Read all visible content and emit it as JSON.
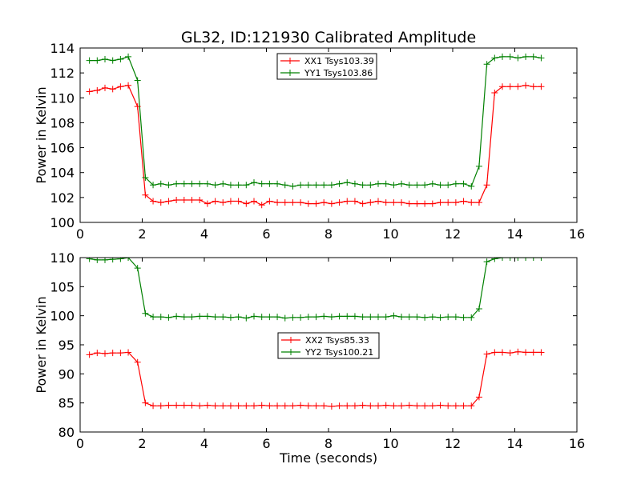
{
  "chart_data": [
    {
      "type": "line",
      "title": "GL32, ID:121930 Calibrated Amplitude",
      "xlabel": "",
      "ylabel": "Power in Kelvin",
      "xlim": [
        0,
        16
      ],
      "ylim": [
        100,
        114
      ],
      "xticks": [
        0,
        2,
        4,
        6,
        8,
        10,
        12,
        14,
        16
      ],
      "yticks": [
        100,
        102,
        104,
        106,
        108,
        110,
        112,
        114
      ],
      "legend_position": "top-center",
      "x": [
        0.3,
        0.55,
        0.8,
        1.05,
        1.3,
        1.55,
        1.85,
        2.1,
        2.35,
        2.6,
        2.85,
        3.1,
        3.35,
        3.6,
        3.85,
        4.1,
        4.35,
        4.6,
        4.85,
        5.1,
        5.35,
        5.6,
        5.85,
        6.1,
        6.35,
        6.6,
        6.85,
        7.1,
        7.35,
        7.6,
        7.85,
        8.1,
        8.35,
        8.6,
        8.85,
        9.1,
        9.35,
        9.6,
        9.85,
        10.1,
        10.35,
        10.6,
        10.85,
        11.1,
        11.35,
        11.6,
        11.85,
        12.1,
        12.35,
        12.6,
        12.85,
        13.1,
        13.35,
        13.6,
        13.85,
        14.1,
        14.35,
        14.6,
        14.85
      ],
      "series": [
        {
          "name": "XX1 Tsys103.39",
          "color": "#ff0000",
          "values": [
            110.5,
            110.6,
            110.8,
            110.7,
            110.9,
            111.0,
            109.3,
            102.2,
            101.7,
            101.6,
            101.7,
            101.8,
            101.8,
            101.8,
            101.8,
            101.5,
            101.7,
            101.6,
            101.7,
            101.7,
            101.5,
            101.7,
            101.4,
            101.7,
            101.6,
            101.6,
            101.6,
            101.6,
            101.5,
            101.5,
            101.6,
            101.5,
            101.6,
            101.7,
            101.7,
            101.5,
            101.6,
            101.7,
            101.6,
            101.6,
            101.6,
            101.5,
            101.5,
            101.5,
            101.5,
            101.6,
            101.6,
            101.6,
            101.7,
            101.6,
            101.6,
            103.0,
            110.4,
            110.9,
            110.9,
            110.9,
            111.0,
            110.9,
            110.9
          ]
        },
        {
          "name": "YY1 Tsys103.86",
          "color": "#008000",
          "values": [
            113.0,
            113.0,
            113.1,
            113.0,
            113.1,
            113.3,
            111.4,
            103.6,
            103.0,
            103.1,
            103.0,
            103.1,
            103.1,
            103.1,
            103.1,
            103.1,
            103.0,
            103.1,
            103.0,
            103.0,
            103.0,
            103.2,
            103.1,
            103.1,
            103.1,
            103.0,
            102.9,
            103.0,
            103.0,
            103.0,
            103.0,
            103.0,
            103.1,
            103.2,
            103.1,
            103.0,
            103.0,
            103.1,
            103.1,
            103.0,
            103.1,
            103.0,
            103.0,
            103.0,
            103.1,
            103.0,
            103.0,
            103.1,
            103.1,
            102.9,
            104.5,
            112.7,
            113.2,
            113.3,
            113.3,
            113.2,
            113.3,
            113.3,
            113.2
          ]
        }
      ]
    },
    {
      "type": "line",
      "title": "",
      "xlabel": "Time (seconds)",
      "ylabel": "Power in Kelvin",
      "xlim": [
        0,
        16
      ],
      "ylim": [
        80,
        110
      ],
      "xticks": [
        0,
        2,
        4,
        6,
        8,
        10,
        12,
        14,
        16
      ],
      "yticks": [
        80,
        85,
        90,
        95,
        100,
        105,
        110
      ],
      "legend_position": "center",
      "x": [
        0.3,
        0.55,
        0.8,
        1.05,
        1.3,
        1.55,
        1.85,
        2.1,
        2.35,
        2.6,
        2.85,
        3.1,
        3.35,
        3.6,
        3.85,
        4.1,
        4.35,
        4.6,
        4.85,
        5.1,
        5.35,
        5.6,
        5.85,
        6.1,
        6.35,
        6.6,
        6.85,
        7.1,
        7.35,
        7.6,
        7.85,
        8.1,
        8.35,
        8.6,
        8.85,
        9.1,
        9.35,
        9.6,
        9.85,
        10.1,
        10.35,
        10.6,
        10.85,
        11.1,
        11.35,
        11.6,
        11.85,
        12.1,
        12.35,
        12.6,
        12.85,
        13.1,
        13.35,
        13.6,
        13.85,
        14.1,
        14.35,
        14.6,
        14.85
      ],
      "series": [
        {
          "name": "XX2 Tsys85.33",
          "color": "#ff0000",
          "values": [
            93.3,
            93.6,
            93.5,
            93.6,
            93.6,
            93.7,
            92.0,
            85.0,
            84.5,
            84.5,
            84.6,
            84.6,
            84.6,
            84.6,
            84.5,
            84.6,
            84.5,
            84.5,
            84.5,
            84.5,
            84.5,
            84.5,
            84.6,
            84.5,
            84.5,
            84.5,
            84.5,
            84.6,
            84.5,
            84.5,
            84.5,
            84.4,
            84.5,
            84.5,
            84.5,
            84.6,
            84.5,
            84.5,
            84.6,
            84.5,
            84.5,
            84.6,
            84.5,
            84.5,
            84.5,
            84.6,
            84.5,
            84.5,
            84.5,
            84.5,
            86.0,
            93.4,
            93.7,
            93.7,
            93.6,
            93.8,
            93.7,
            93.7,
            93.7
          ]
        },
        {
          "name": "YY2 Tsys100.21",
          "color": "#008000",
          "values": [
            109.8,
            109.6,
            109.6,
            109.7,
            109.8,
            110.0,
            108.2,
            100.4,
            99.8,
            99.8,
            99.7,
            99.9,
            99.8,
            99.8,
            99.9,
            99.9,
            99.8,
            99.8,
            99.7,
            99.8,
            99.6,
            99.9,
            99.8,
            99.8,
            99.8,
            99.6,
            99.7,
            99.7,
            99.8,
            99.8,
            99.9,
            99.8,
            99.9,
            99.9,
            99.9,
            99.8,
            99.8,
            99.8,
            99.8,
            100.0,
            99.8,
            99.8,
            99.8,
            99.7,
            99.8,
            99.7,
            99.8,
            99.8,
            99.7,
            99.7,
            101.2,
            109.3,
            109.8,
            110.0,
            110.0,
            110.0,
            110.0,
            110.0,
            110.0
          ]
        }
      ]
    }
  ]
}
